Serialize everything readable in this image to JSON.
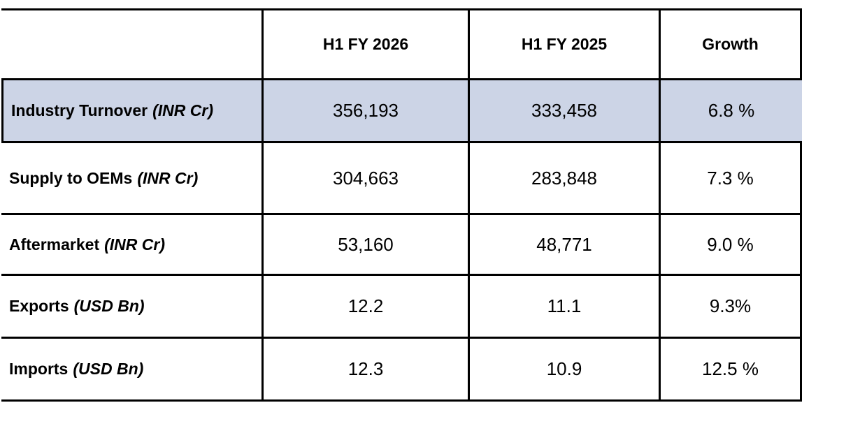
{
  "table": {
    "columns": [
      "",
      "H1 FY 2026",
      "H1 FY 2025",
      "Growth"
    ],
    "rows": [
      {
        "label": "Industry Turnover",
        "unit": "(INR Cr)",
        "h1fy2026": "356,193",
        "h1fy2025": "333,458",
        "growth": "6.8 %",
        "highlighted": true
      },
      {
        "label": "Supply to OEMs",
        "unit": "(INR Cr)",
        "h1fy2026": "304,663",
        "h1fy2025": "283,848",
        "growth": "7.3 %",
        "highlighted": false
      },
      {
        "label": "Aftermarket",
        "unit": "(INR Cr)",
        "h1fy2026": "53,160",
        "h1fy2025": "48,771",
        "growth": "9.0 %",
        "highlighted": false
      },
      {
        "label": "Exports",
        "unit": "(USD Bn)",
        "h1fy2026": "12.2",
        "h1fy2025": "11.1",
        "growth": "9.3%",
        "highlighted": false
      },
      {
        "label": "Imports",
        "unit": "(USD Bn)",
        "h1fy2026": "12.3",
        "h1fy2025": "10.9",
        "growth": "12.5 %",
        "highlighted": false
      }
    ],
    "colors": {
      "highlight_row_background": "#ccd4e6",
      "border": "#000000",
      "text": "#000000"
    }
  },
  "chart_data": {
    "type": "table",
    "title": "",
    "columns": [
      "",
      "H1 FY 2026",
      "H1 FY 2025",
      "Growth"
    ],
    "rows": [
      [
        "Industry Turnover (INR Cr)",
        "356,193",
        "333,458",
        "6.8 %"
      ],
      [
        "Supply to OEMs (INR Cr)",
        "304,663",
        "283,848",
        "7.3 %"
      ],
      [
        "Aftermarket (INR Cr)",
        "53,160",
        "48,771",
        "9.0 %"
      ],
      [
        "Exports (USD Bn)",
        "12.2",
        "11.1",
        "9.3%"
      ],
      [
        "Imports (USD Bn)",
        "12.3",
        "10.9",
        "12.5 %"
      ]
    ],
    "highlighted_row_index": 0,
    "layout": {
      "grid": "black ruled borders, all cells",
      "header_row_style": "bold, centered, white background",
      "first_column_style": "bold labels with bold-italic unit suffix, left aligned",
      "value_cells_style": "regular weight, centered"
    }
  }
}
